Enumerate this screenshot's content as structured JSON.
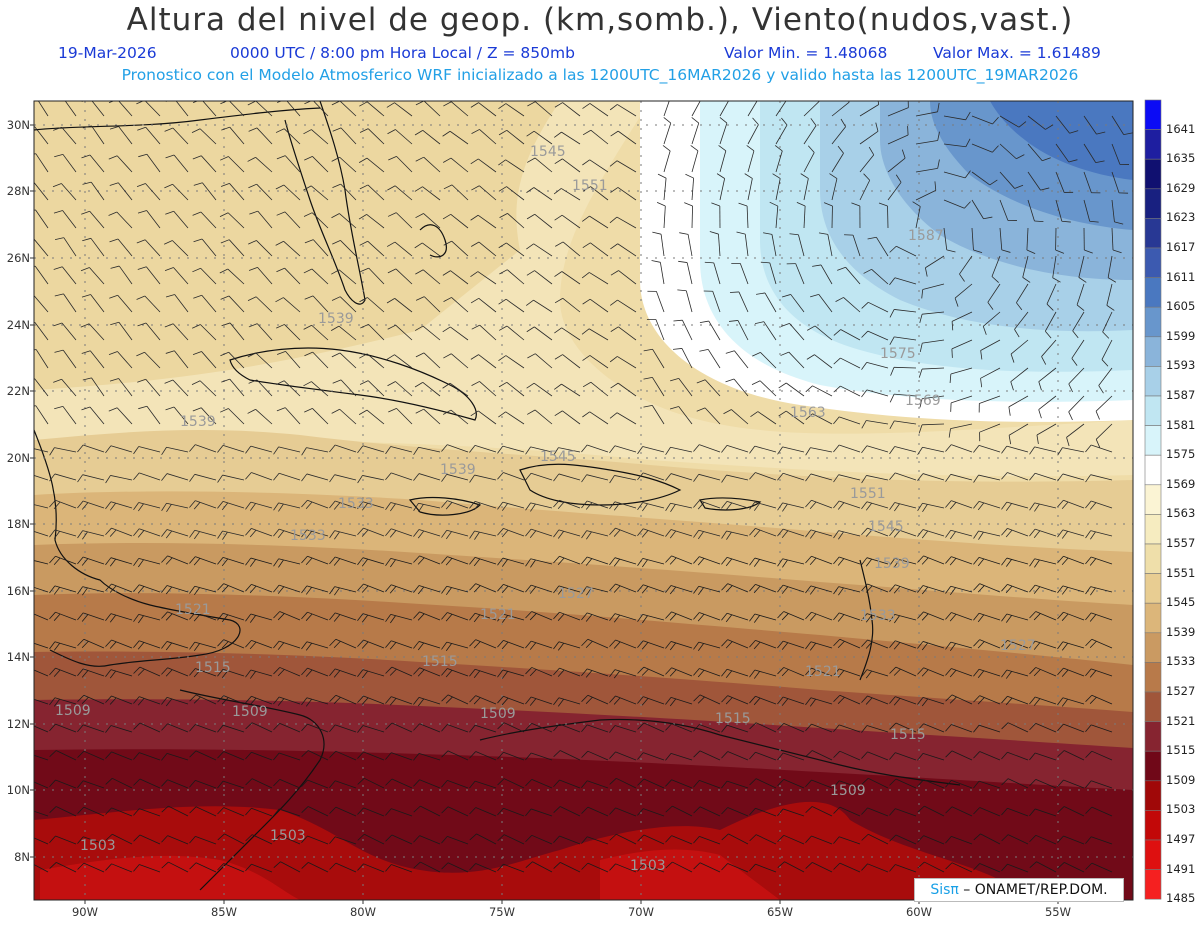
{
  "header": {
    "title": "Altura del nivel de geop. (km,somb.), Viento(nudos,vast.)",
    "date": "19-Mar-2026",
    "time": "0000 UTC / 8:00 pm Hora Local / Z = 850mb",
    "min_value": "Valor Min. = 1.48068",
    "max_value": "Valor Max. = 1.61489",
    "forecast_info": "Pronostico con el Modelo Atmosferico WRF inicializado a las 1200UTC_16MAR2026 y valido hasta las  1200UTC_19MAR2026"
  },
  "axes": {
    "lat_labels": [
      "30N",
      "28N",
      "26N",
      "24N",
      "22N",
      "20N",
      "18N",
      "16N",
      "14N",
      "12N",
      "10N",
      "8N"
    ],
    "lon_labels": [
      "90W",
      "85W",
      "80W",
      "75W",
      "70W",
      "65W",
      "60W",
      "55W"
    ]
  },
  "colorbar": {
    "levels": [
      "1641",
      "1635",
      "1629",
      "1623",
      "1617",
      "1611",
      "1605",
      "1599",
      "1593",
      "1587",
      "1581",
      "1575",
      "1569",
      "1563",
      "1557",
      "1551",
      "1545",
      "1539",
      "1533",
      "1527",
      "1521",
      "1515",
      "1509",
      "1503",
      "1497",
      "1491",
      "1485"
    ],
    "colors": [
      "#0b0bf5",
      "#1e1ea0",
      "#101070",
      "#182080",
      "#283894",
      "#3c5ab0",
      "#4a78c0",
      "#6896cc",
      "#8ab4da",
      "#a8d0e8",
      "#c0e6f2",
      "#d8f4fa",
      "#ffffff",
      "#fbf4d4",
      "#f6ecc0",
      "#efdfaa",
      "#e8cd92",
      "#dcb67a",
      "#ca9a62",
      "#b87a4a",
      "#a0563a",
      "#862430",
      "#700818",
      "#a00808",
      "#c20808",
      "#de1010",
      "#f52020"
    ]
  },
  "contour_labels": [
    {
      "text": "1545"
    },
    {
      "text": "1551"
    },
    {
      "text": "1587"
    },
    {
      "text": "1575"
    },
    {
      "text": "1569"
    },
    {
      "text": "1563"
    },
    {
      "text": "1539"
    },
    {
      "text": "1539"
    },
    {
      "text": "1539"
    },
    {
      "text": "1545"
    },
    {
      "text": "1533"
    },
    {
      "text": "1533"
    },
    {
      "text": "1551"
    },
    {
      "text": "1545"
    },
    {
      "text": "1539"
    },
    {
      "text": "1521"
    },
    {
      "text": "1521"
    },
    {
      "text": "1527"
    },
    {
      "text": "1533"
    },
    {
      "text": "1515"
    },
    {
      "text": "1515"
    },
    {
      "text": "1521"
    },
    {
      "text": "1509"
    },
    {
      "text": "1509"
    },
    {
      "text": "1509"
    },
    {
      "text": "1515"
    },
    {
      "text": "1515"
    },
    {
      "text": "1509"
    },
    {
      "text": "1503"
    },
    {
      "text": "1503"
    },
    {
      "text": "1503"
    },
    {
      "text": "1527"
    }
  ],
  "credit": {
    "brand": "Sisπ",
    "org": " – ONAMET/REP.DOM."
  }
}
